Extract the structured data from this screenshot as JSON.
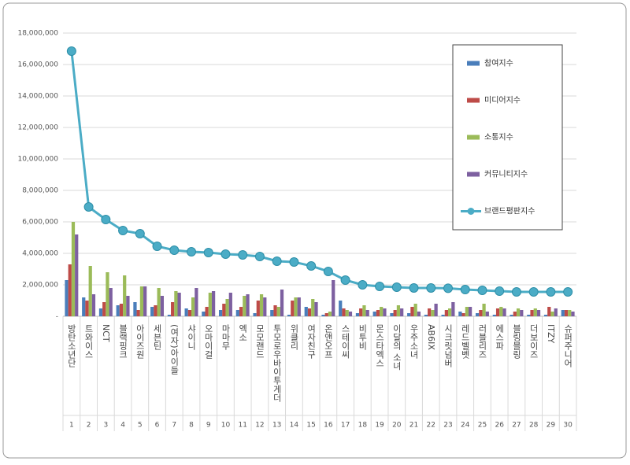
{
  "chart_data": {
    "type": "bar",
    "categories": [
      "방탄소년단",
      "트와이스",
      "NCT",
      "블랙핑크",
      "아이즈원",
      "세븐틴",
      "(여자)아이들",
      "샤이니",
      "오마이걸",
      "마마무",
      "엑소",
      "모모랜드",
      "투모로우바이투게더",
      "위클리",
      "여자친구",
      "온앤오프",
      "스테이씨",
      "비투비",
      "몬스타엑스",
      "이달의 소녀",
      "우주소녀",
      "AB6IX",
      "시크릿넘버",
      "레드벨벳",
      "러블리즈",
      "에스파",
      "블링블링",
      "더보이즈",
      "ITZY",
      "슈퍼주니어"
    ],
    "ranks": [
      1,
      2,
      3,
      4,
      5,
      6,
      7,
      8,
      9,
      10,
      11,
      12,
      13,
      14,
      15,
      16,
      17,
      18,
      19,
      20,
      21,
      22,
      23,
      24,
      25,
      26,
      27,
      28,
      29,
      30
    ],
    "series": [
      {
        "name": "참여지수",
        "type": "bar",
        "color": "#4a7ebb",
        "values": [
          2300000,
          1200000,
          500000,
          700000,
          900000,
          600000,
          100000,
          500000,
          300000,
          400000,
          400000,
          200000,
          400000,
          100000,
          600000,
          100000,
          1000000,
          200000,
          300000,
          200000,
          200000,
          100000,
          100000,
          300000,
          200000,
          100000,
          100000,
          100000,
          100000,
          400000
        ]
      },
      {
        "name": "미디어지수",
        "type": "bar",
        "color": "#be4b48",
        "values": [
          3300000,
          1000000,
          900000,
          800000,
          400000,
          700000,
          900000,
          400000,
          600000,
          800000,
          600000,
          1000000,
          700000,
          1000000,
          500000,
          200000,
          500000,
          500000,
          400000,
          400000,
          600000,
          500000,
          400000,
          200000,
          400000,
          500000,
          300000,
          400000,
          600000,
          400000
        ]
      },
      {
        "name": "소통지수",
        "type": "bar",
        "color": "#9bbb59",
        "values": [
          6000000,
          3200000,
          2800000,
          2600000,
          1900000,
          1800000,
          1600000,
          1200000,
          1500000,
          1100000,
          1300000,
          1400000,
          600000,
          1200000,
          1100000,
          300000,
          400000,
          700000,
          600000,
          700000,
          800000,
          400000,
          500000,
          600000,
          800000,
          600000,
          500000,
          500000,
          300000,
          400000
        ]
      },
      {
        "name": "커뮤니티지수",
        "type": "bar",
        "color": "#7d60a0",
        "values": [
          5200000,
          1400000,
          1800000,
          1300000,
          1900000,
          1300000,
          1500000,
          1800000,
          1600000,
          1500000,
          1400000,
          1200000,
          1700000,
          1200000,
          900000,
          2300000,
          300000,
          400000,
          500000,
          500000,
          300000,
          800000,
          900000,
          600000,
          300000,
          500000,
          400000,
          400000,
          500000,
          300000
        ]
      },
      {
        "name": "브랜드평판지수",
        "type": "line",
        "color": "#4bacc6",
        "values": [
          16850000,
          6950000,
          6150000,
          5450000,
          5250000,
          4450000,
          4200000,
          4100000,
          4050000,
          3950000,
          3900000,
          3800000,
          3500000,
          3450000,
          3200000,
          2850000,
          2300000,
          2000000,
          1900000,
          1850000,
          1800000,
          1800000,
          1780000,
          1700000,
          1650000,
          1600000,
          1550000,
          1550000,
          1550000,
          1550000
        ]
      }
    ],
    "ylim": [
      0,
      18000000
    ],
    "yticks": [
      {
        "value": 0,
        "label": "-"
      },
      {
        "value": 2000000,
        "label": "2,000,000"
      },
      {
        "value": 4000000,
        "label": "4,000,000"
      },
      {
        "value": 6000000,
        "label": "6,000,000"
      },
      {
        "value": 8000000,
        "label": "8,000,000"
      },
      {
        "value": 10000000,
        "label": "10,000,000"
      },
      {
        "value": 12000000,
        "label": "12,000,000"
      },
      {
        "value": 14000000,
        "label": "14,000,000"
      },
      {
        "value": 16000000,
        "label": "16,000,000"
      },
      {
        "value": 18000000,
        "label": "18,000,000"
      }
    ],
    "grid": true,
    "legend": "upper right"
  }
}
